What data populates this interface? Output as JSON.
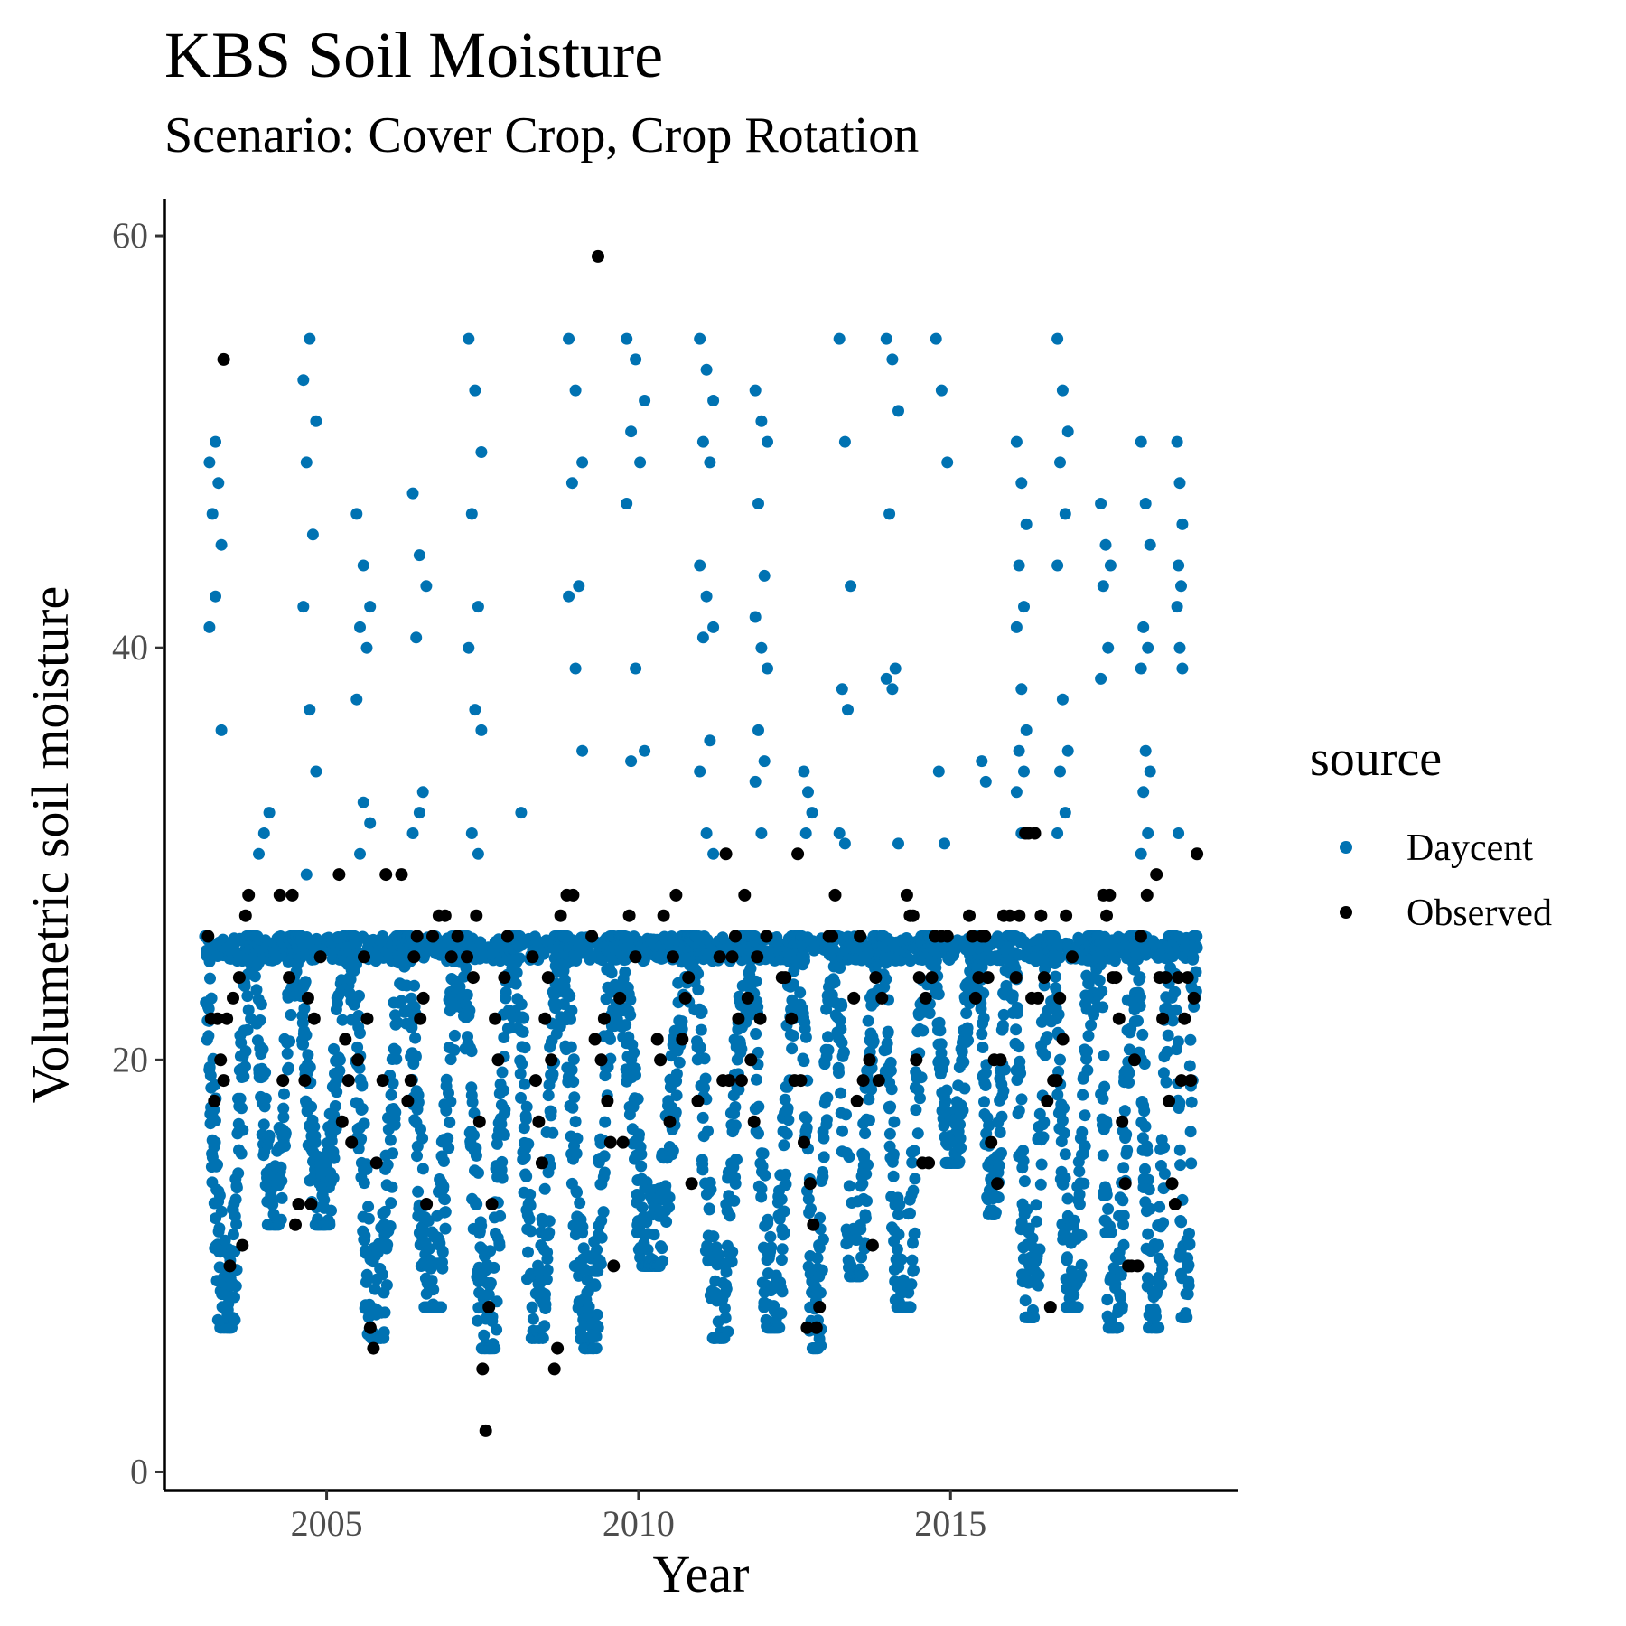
{
  "chart_data": {
    "type": "scatter",
    "title": "KBS Soil Moisture",
    "subtitle": "Scenario: Cover Crop, Crop Rotation",
    "xlabel": "Year",
    "ylabel": "Volumetric soil moisture",
    "xlim": [
      2002.4,
      2019.6
    ],
    "ylim": [
      -0.9,
      61.8
    ],
    "x_ticks": [
      2005,
      2010,
      2015
    ],
    "y_ticks": [
      0,
      20,
      40,
      60
    ],
    "grid": false,
    "legend": {
      "title": "source",
      "position": "right",
      "entries": [
        {
          "label": "Daycent",
          "color": "#0072B2"
        },
        {
          "label": "Observed",
          "color": "#000000"
        }
      ]
    },
    "series": [
      {
        "name": "Daycent",
        "color": "#0072B2",
        "seasons": [
          {
            "start": 2003.05,
            "end": 2003.85,
            "min": 7,
            "max": 26,
            "sat": [
              41,
              42.5,
              45,
              46.5,
              48,
              49,
              50,
              36
            ]
          },
          {
            "start": 2003.85,
            "end": 2004.55,
            "min": 12,
            "max": 26,
            "sat": [
              30,
              31,
              32
            ]
          },
          {
            "start": 2004.55,
            "end": 2005.4,
            "min": 12,
            "max": 26,
            "sat": [
              53,
              55,
              51,
              49,
              45.5,
              42,
              37,
              34,
              29
            ]
          },
          {
            "start": 2005.4,
            "end": 2006.3,
            "min": 6.5,
            "max": 26,
            "sat": [
              46.5,
              44,
              42,
              41,
              40,
              37.5,
              32.5,
              31.5,
              30
            ]
          },
          {
            "start": 2006.3,
            "end": 2007.2,
            "min": 8,
            "max": 26,
            "sat": [
              47.5,
              44.5,
              43,
              40.5,
              33,
              31,
              32
            ]
          },
          {
            "start": 2007.2,
            "end": 2008.05,
            "min": 6,
            "max": 26,
            "sat": [
              55,
              52.5,
              49.5,
              46.5,
              42,
              40,
              37,
              36,
              31,
              30
            ]
          },
          {
            "start": 2008.05,
            "end": 2008.8,
            "min": 6.5,
            "max": 26,
            "sat": [
              32
            ]
          },
          {
            "start": 2008.8,
            "end": 2009.7,
            "min": 6,
            "max": 26,
            "sat": [
              55,
              52.5,
              49,
              48,
              43,
              42.5,
              39,
              35
            ]
          },
          {
            "start": 2009.7,
            "end": 2010.9,
            "min": 10,
            "max": 26,
            "sat": [
              55,
              54,
              52,
              50.5,
              49,
              47,
              39,
              35,
              34.5
            ]
          },
          {
            "start": 2010.9,
            "end": 2011.8,
            "min": 6.5,
            "max": 26,
            "sat": [
              55,
              53.5,
              52,
              50,
              49,
              44,
              42.5,
              41,
              40.5,
              35.5,
              34,
              31,
              30
            ]
          },
          {
            "start": 2011.8,
            "end": 2012.6,
            "min": 7,
            "max": 26,
            "sat": [
              52.5,
              51,
              50,
              47,
              43.5,
              41.5,
              40,
              39,
              36,
              34.5,
              33.5,
              31
            ]
          },
          {
            "start": 2012.6,
            "end": 2013.15,
            "min": 6,
            "max": 26,
            "sat": [
              34,
              33,
              32,
              31
            ]
          },
          {
            "start": 2013.15,
            "end": 2013.9,
            "min": 9.5,
            "max": 26,
            "sat": [
              55,
              50,
              43,
              38,
              37,
              31,
              30.5
            ]
          },
          {
            "start": 2013.9,
            "end": 2014.7,
            "min": 8,
            "max": 26,
            "sat": [
              55,
              54,
              51.5,
              46.5,
              39,
              38.5,
              38,
              30.5
            ]
          },
          {
            "start": 2014.7,
            "end": 2015.45,
            "min": 15,
            "max": 26,
            "sat": [
              55,
              52.5,
              49,
              34,
              30.5
            ]
          },
          {
            "start": 2015.45,
            "end": 2016.0,
            "min": 12.5,
            "max": 26,
            "sat": [
              34.5,
              33.5
            ]
          },
          {
            "start": 2016.0,
            "end": 2016.65,
            "min": 7.5,
            "max": 26,
            "sat": [
              50,
              48,
              46,
              44,
              42,
              41,
              38,
              36,
              35,
              34,
              33,
              31
            ]
          },
          {
            "start": 2016.65,
            "end": 2017.35,
            "min": 8,
            "max": 26,
            "sat": [
              55,
              52.5,
              50.5,
              49,
              46.5,
              44,
              37.5,
              35,
              34,
              32,
              31
            ]
          },
          {
            "start": 2017.35,
            "end": 2018.0,
            "min": 7,
            "max": 26,
            "sat": [
              47,
              45,
              44,
              43,
              40,
              38.5
            ]
          },
          {
            "start": 2018.0,
            "end": 2018.6,
            "min": 7,
            "max": 26,
            "sat": [
              50,
              47,
              45,
              41,
              40,
              39,
              35,
              34,
              33,
              31,
              30
            ]
          },
          {
            "start": 2018.6,
            "end": 2018.95,
            "min": 7.5,
            "max": 26,
            "sat": [
              50,
              48,
              46,
              44,
              43,
              42,
              40,
              39,
              31
            ]
          }
        ]
      },
      {
        "name": "Observed",
        "color": "#000000",
        "points": [
          [
            2003.1,
            26
          ],
          [
            2003.15,
            22
          ],
          [
            2003.2,
            18
          ],
          [
            2003.25,
            22
          ],
          [
            2003.3,
            20
          ],
          [
            2003.35,
            54
          ],
          [
            2003.35,
            19
          ],
          [
            2003.4,
            22
          ],
          [
            2003.45,
            10
          ],
          [
            2003.5,
            23
          ],
          [
            2003.6,
            24
          ],
          [
            2003.65,
            11
          ],
          [
            2003.7,
            27
          ],
          [
            2003.75,
            28
          ],
          [
            2004.25,
            28
          ],
          [
            2004.3,
            19
          ],
          [
            2004.4,
            24
          ],
          [
            2004.45,
            28
          ],
          [
            2004.5,
            12
          ],
          [
            2004.55,
            13
          ],
          [
            2004.65,
            19
          ],
          [
            2004.7,
            23
          ],
          [
            2004.75,
            13
          ],
          [
            2004.8,
            22
          ],
          [
            2004.9,
            25
          ],
          [
            2005.2,
            29
          ],
          [
            2005.25,
            17
          ],
          [
            2005.3,
            21
          ],
          [
            2005.35,
            19
          ],
          [
            2005.4,
            16
          ],
          [
            2005.5,
            20
          ],
          [
            2005.6,
            25
          ],
          [
            2005.65,
            22
          ],
          [
            2005.7,
            7
          ],
          [
            2005.75,
            6
          ],
          [
            2005.8,
            15
          ],
          [
            2005.9,
            19
          ],
          [
            2005.95,
            29
          ],
          [
            2006.2,
            29
          ],
          [
            2006.3,
            18
          ],
          [
            2006.35,
            19
          ],
          [
            2006.4,
            25
          ],
          [
            2006.45,
            26
          ],
          [
            2006.5,
            22
          ],
          [
            2006.55,
            23
          ],
          [
            2006.6,
            13
          ],
          [
            2006.7,
            26
          ],
          [
            2006.8,
            27
          ],
          [
            2006.9,
            27
          ],
          [
            2007.0,
            25
          ],
          [
            2007.1,
            26
          ],
          [
            2007.25,
            25
          ],
          [
            2007.35,
            24
          ],
          [
            2007.4,
            27
          ],
          [
            2007.45,
            17
          ],
          [
            2007.5,
            5
          ],
          [
            2007.55,
            2
          ],
          [
            2007.6,
            8
          ],
          [
            2007.65,
            13
          ],
          [
            2007.7,
            22
          ],
          [
            2007.75,
            20
          ],
          [
            2007.85,
            24
          ],
          [
            2007.9,
            26
          ],
          [
            2008.3,
            25
          ],
          [
            2008.35,
            19
          ],
          [
            2008.4,
            17
          ],
          [
            2008.45,
            15
          ],
          [
            2008.5,
            22
          ],
          [
            2008.55,
            24
          ],
          [
            2008.6,
            20
          ],
          [
            2008.65,
            5
          ],
          [
            2008.7,
            6
          ],
          [
            2008.75,
            27
          ],
          [
            2008.85,
            28
          ],
          [
            2008.95,
            28
          ],
          [
            2009.25,
            26
          ],
          [
            2009.3,
            21
          ],
          [
            2009.35,
            59
          ],
          [
            2009.4,
            20
          ],
          [
            2009.45,
            22
          ],
          [
            2009.5,
            18
          ],
          [
            2009.55,
            16
          ],
          [
            2009.6,
            10
          ],
          [
            2009.7,
            23
          ],
          [
            2009.75,
            16
          ],
          [
            2009.85,
            27
          ],
          [
            2009.95,
            25
          ],
          [
            2010.3,
            21
          ],
          [
            2010.35,
            20
          ],
          [
            2010.4,
            27
          ],
          [
            2010.5,
            17
          ],
          [
            2010.55,
            25
          ],
          [
            2010.6,
            28
          ],
          [
            2010.7,
            21
          ],
          [
            2010.75,
            23
          ],
          [
            2010.8,
            24
          ],
          [
            2010.85,
            14
          ],
          [
            2010.95,
            18
          ],
          [
            2011.3,
            25
          ],
          [
            2011.35,
            19
          ],
          [
            2011.4,
            30
          ],
          [
            2011.45,
            19
          ],
          [
            2011.5,
            25
          ],
          [
            2011.55,
            26
          ],
          [
            2011.6,
            22
          ],
          [
            2011.65,
            19
          ],
          [
            2011.7,
            28
          ],
          [
            2011.75,
            23
          ],
          [
            2011.8,
            20
          ],
          [
            2011.85,
            17
          ],
          [
            2011.9,
            25
          ],
          [
            2011.95,
            22
          ],
          [
            2012.05,
            26
          ],
          [
            2012.3,
            24
          ],
          [
            2012.35,
            24
          ],
          [
            2012.45,
            22
          ],
          [
            2012.5,
            19
          ],
          [
            2012.55,
            30
          ],
          [
            2012.6,
            19
          ],
          [
            2012.65,
            16
          ],
          [
            2012.7,
            7
          ],
          [
            2012.75,
            14
          ],
          [
            2012.8,
            12
          ],
          [
            2012.85,
            7
          ],
          [
            2012.9,
            8
          ],
          [
            2013.05,
            26
          ],
          [
            2013.1,
            26
          ],
          [
            2013.15,
            28
          ],
          [
            2013.45,
            23
          ],
          [
            2013.5,
            18
          ],
          [
            2013.55,
            26
          ],
          [
            2013.6,
            19
          ],
          [
            2013.7,
            20
          ],
          [
            2013.75,
            11
          ],
          [
            2013.8,
            24
          ],
          [
            2013.85,
            19
          ],
          [
            2013.9,
            23
          ],
          [
            2014.3,
            28
          ],
          [
            2014.35,
            27
          ],
          [
            2014.4,
            27
          ],
          [
            2014.45,
            20
          ],
          [
            2014.5,
            24
          ],
          [
            2014.55,
            15
          ],
          [
            2014.6,
            23
          ],
          [
            2014.65,
            15
          ],
          [
            2014.7,
            24
          ],
          [
            2014.75,
            26
          ],
          [
            2014.85,
            26
          ],
          [
            2014.95,
            26
          ],
          [
            2015.3,
            27
          ],
          [
            2015.35,
            26
          ],
          [
            2015.4,
            23
          ],
          [
            2015.45,
            24
          ],
          [
            2015.5,
            26
          ],
          [
            2015.55,
            26
          ],
          [
            2015.6,
            24
          ],
          [
            2015.65,
            16
          ],
          [
            2015.7,
            20
          ],
          [
            2015.75,
            14
          ],
          [
            2015.8,
            20
          ],
          [
            2015.85,
            27
          ],
          [
            2015.95,
            27
          ],
          [
            2016.05,
            24
          ],
          [
            2016.1,
            27
          ],
          [
            2016.2,
            31
          ],
          [
            2016.25,
            31
          ],
          [
            2016.3,
            23
          ],
          [
            2016.35,
            31
          ],
          [
            2016.4,
            23
          ],
          [
            2016.45,
            27
          ],
          [
            2016.5,
            24
          ],
          [
            2016.55,
            18
          ],
          [
            2016.6,
            8
          ],
          [
            2016.65,
            19
          ],
          [
            2016.7,
            19
          ],
          [
            2016.75,
            23
          ],
          [
            2016.8,
            21
          ],
          [
            2016.85,
            27
          ],
          [
            2016.95,
            25
          ],
          [
            2017.45,
            28
          ],
          [
            2017.5,
            27
          ],
          [
            2017.55,
            28
          ],
          [
            2017.6,
            24
          ],
          [
            2017.65,
            24
          ],
          [
            2017.7,
            22
          ],
          [
            2017.75,
            17
          ],
          [
            2017.8,
            14
          ],
          [
            2017.85,
            10
          ],
          [
            2017.9,
            10
          ],
          [
            2017.95,
            20
          ],
          [
            2018.0,
            10
          ],
          [
            2018.05,
            26
          ],
          [
            2018.15,
            28
          ],
          [
            2018.3,
            29
          ],
          [
            2018.35,
            24
          ],
          [
            2018.4,
            22
          ],
          [
            2018.45,
            24
          ],
          [
            2018.5,
            18
          ],
          [
            2018.55,
            14
          ],
          [
            2018.6,
            13
          ],
          [
            2018.65,
            24
          ],
          [
            2018.7,
            19
          ],
          [
            2018.75,
            22
          ],
          [
            2018.8,
            24
          ],
          [
            2018.85,
            19
          ],
          [
            2018.9,
            23
          ],
          [
            2018.95,
            30
          ]
        ]
      }
    ]
  }
}
